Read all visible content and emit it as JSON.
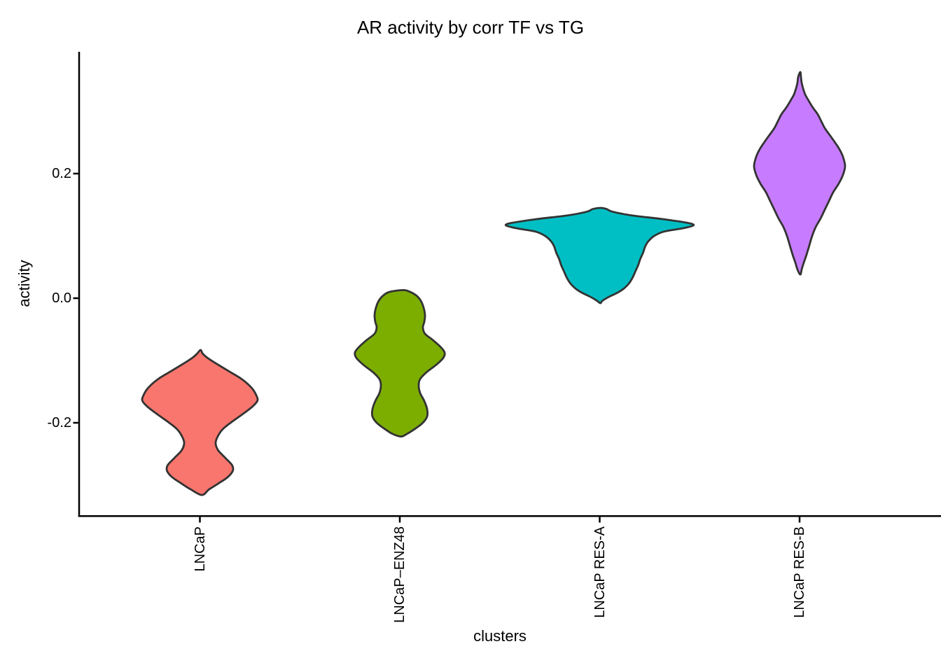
{
  "title": "AR activity by corr TF vs TG",
  "x_axis": {
    "label": "clusters",
    "tick_labels": [
      "LNCaP",
      "LNCaP–ENZ48",
      "LNCaP RES-A",
      "LNCaP RES-B"
    ]
  },
  "y_axis": {
    "label": "activity",
    "tick_labels": [
      "0.2",
      "0.0",
      "-0.2"
    ]
  },
  "colors": {
    "background": "#FFFFFF",
    "axis_line": "#000000",
    "violin_outline": "#333333"
  },
  "chart_data": {
    "type": "violin",
    "title": "AR activity by corr TF vs TG",
    "xlabel": "clusters",
    "ylabel": "activity",
    "categories": [
      "LNCaP",
      "LNCaP–ENZ48",
      "LNCaP RES-A",
      "LNCaP RES-B"
    ],
    "y_ticks": [
      0.2,
      0.0,
      -0.2
    ],
    "ylim": [
      -0.35,
      0.4
    ],
    "grid": false,
    "legend": "none",
    "outline_color": "#333333",
    "profile_format": [
      "activity_value",
      "half_width_px"
    ],
    "violins": [
      {
        "name": "LNCaP",
        "fill": "#F8766D",
        "min": -0.316,
        "max": -0.083,
        "widest_at": -0.165,
        "profile": [
          [
            -0.083,
            1
          ],
          [
            -0.089,
            4
          ],
          [
            -0.095,
            10
          ],
          [
            -0.104,
            22
          ],
          [
            -0.117,
            41
          ],
          [
            -0.13,
            60
          ],
          [
            -0.144,
            74
          ],
          [
            -0.157,
            81
          ],
          [
            -0.165,
            82
          ],
          [
            -0.175,
            74
          ],
          [
            -0.187,
            60
          ],
          [
            -0.199,
            45
          ],
          [
            -0.211,
            32
          ],
          [
            -0.223,
            25
          ],
          [
            -0.233,
            22.5
          ],
          [
            -0.244,
            26
          ],
          [
            -0.256,
            36
          ],
          [
            -0.268,
            46
          ],
          [
            -0.277,
            47
          ],
          [
            -0.287,
            40
          ],
          [
            -0.297,
            27
          ],
          [
            -0.307,
            13
          ],
          [
            -0.316,
            3
          ]
        ]
      },
      {
        "name": "LNCaP–ENZ48",
        "fill": "#7CAE00",
        "min": -0.222,
        "max": 0.013,
        "widest_at": -0.087,
        "profile": [
          [
            0.013,
            5
          ],
          [
            0.01,
            15
          ],
          [
            0.004,
            24
          ],
          [
            -0.004,
            30
          ],
          [
            -0.015,
            34
          ],
          [
            -0.027,
            36
          ],
          [
            -0.038,
            35
          ],
          [
            -0.047,
            33
          ],
          [
            -0.057,
            36
          ],
          [
            -0.067,
            47
          ],
          [
            -0.078,
            58
          ],
          [
            -0.087,
            64
          ],
          [
            -0.096,
            62
          ],
          [
            -0.107,
            52
          ],
          [
            -0.119,
            38
          ],
          [
            -0.13,
            29
          ],
          [
            -0.14,
            27
          ],
          [
            -0.152,
            29
          ],
          [
            -0.165,
            35
          ],
          [
            -0.178,
            39
          ],
          [
            -0.19,
            39
          ],
          [
            -0.201,
            32
          ],
          [
            -0.211,
            20
          ],
          [
            -0.218,
            10
          ],
          [
            -0.222,
            2
          ]
        ]
      },
      {
        "name": "LNCaP RES-A",
        "fill": "#00BFC4",
        "min": -0.008,
        "max": 0.145,
        "widest_at": 0.117,
        "profile": [
          [
            0.145,
            2
          ],
          [
            0.143,
            10
          ],
          [
            0.139,
            18
          ],
          [
            0.133,
            45
          ],
          [
            0.127,
            90
          ],
          [
            0.121,
            125
          ],
          [
            0.117,
            134
          ],
          [
            0.112,
            118
          ],
          [
            0.107,
            92
          ],
          [
            0.1,
            78
          ],
          [
            0.092,
            70
          ],
          [
            0.083,
            65
          ],
          [
            0.073,
            62
          ],
          [
            0.063,
            58
          ],
          [
            0.053,
            55
          ],
          [
            0.043,
            51
          ],
          [
            0.033,
            47
          ],
          [
            0.024,
            42
          ],
          [
            0.015,
            34
          ],
          [
            0.008,
            24
          ],
          [
            0.002,
            13
          ],
          [
            -0.004,
            4
          ],
          [
            -0.008,
            1
          ]
        ]
      },
      {
        "name": "LNCaP RES-B",
        "fill": "#C77CFF",
        "min": 0.038,
        "max": 0.363,
        "widest_at": 0.21,
        "profile": [
          [
            0.363,
            1
          ],
          [
            0.355,
            2
          ],
          [
            0.346,
            3
          ],
          [
            0.337,
            5
          ],
          [
            0.327,
            8
          ],
          [
            0.317,
            13
          ],
          [
            0.306,
            19
          ],
          [
            0.295,
            26
          ],
          [
            0.284,
            31
          ],
          [
            0.273,
            36
          ],
          [
            0.262,
            43
          ],
          [
            0.251,
            50
          ],
          [
            0.239,
            57
          ],
          [
            0.227,
            62
          ],
          [
            0.212,
            65
          ],
          [
            0.198,
            62
          ],
          [
            0.184,
            56
          ],
          [
            0.17,
            48
          ],
          [
            0.156,
            42
          ],
          [
            0.142,
            36
          ],
          [
            0.128,
            30
          ],
          [
            0.114,
            23
          ],
          [
            0.1,
            18
          ],
          [
            0.085,
            14
          ],
          [
            0.07,
            10
          ],
          [
            0.057,
            6
          ],
          [
            0.046,
            3
          ],
          [
            0.038,
            1
          ]
        ]
      }
    ]
  }
}
